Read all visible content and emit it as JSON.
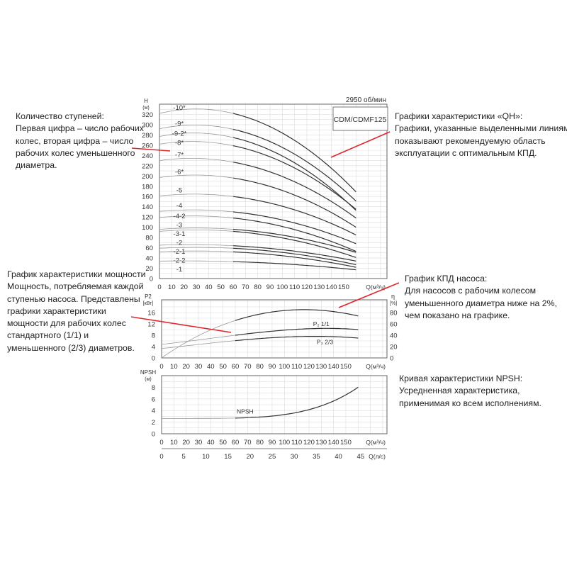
{
  "header": {
    "speed": "2950 об/мин",
    "model": "CDM/CDMF125"
  },
  "annotations": {
    "stages": [
      "Количество ступеней:",
      "Первая цифра – число рабочих",
      "колес, вторая цифра – число",
      "рабочих колес уменьшенного",
      "диаметра."
    ],
    "qh": [
      "Графики характеристики «QH»:",
      "Графики, указанные выделенными линиями,",
      "показывают рекомендуемую область",
      "эксплуатации с оптимальным КПД."
    ],
    "power": [
      "График характеристики мощности",
      "Мощность, потребляемая каждой",
      "ступенью насоса. Представлены",
      "графики характеристики",
      "мощности для рабочих колес",
      "стандартного (1/1) и",
      "уменьшенного (2/3) диаметров."
    ],
    "efficiency": [
      "График КПД насоса:",
      "Для насосов с рабочим колесом",
      "уменьшенного диаметра ниже на 2%,",
      "чем показано на графике."
    ],
    "npsh": [
      "Кривая характеристики NPSH:",
      "Усредненная характеристика,",
      "применимая ко всем исполнениям."
    ]
  },
  "accent_color": "#e0262b",
  "chart_data": [
    {
      "type": "line",
      "ylabel": "H",
      "yunit": "(м)",
      "xlabel": "Q(м³/ч)",
      "xlim": [
        0,
        180
      ],
      "ylim": [
        0,
        340
      ],
      "grid": true,
      "xticks": [
        0,
        10,
        20,
        30,
        40,
        50,
        60,
        70,
        80,
        90,
        100,
        110,
        120,
        130,
        140,
        150
      ],
      "yticks": [
        0,
        20,
        40,
        60,
        80,
        100,
        120,
        140,
        160,
        180,
        200,
        220,
        240,
        260,
        280,
        300,
        320
      ],
      "x": [
        0,
        60,
        160
      ],
      "recommended_range": [
        60,
        160
      ],
      "series": [
        {
          "name": "-10*",
          "values": [
            322,
            322,
            169
          ]
        },
        {
          "name": "-9*",
          "values": [
            292,
            291,
            151
          ]
        },
        {
          "name": "-9-2*",
          "values": [
            277,
            275,
            133
          ]
        },
        {
          "name": "-8*",
          "values": [
            262,
            259,
            135
          ]
        },
        {
          "name": "-7*",
          "values": [
            230,
            227,
            118
          ]
        },
        {
          "name": "-6*",
          "values": [
            197,
            196,
            100
          ]
        },
        {
          "name": "-5",
          "values": [
            161,
            160,
            85
          ]
        },
        {
          "name": "-4",
          "values": [
            131,
            130,
            68
          ]
        },
        {
          "name": "-4-2",
          "values": [
            119,
            118,
            53
          ]
        },
        {
          "name": "-3",
          "values": [
            96,
            96,
            51
          ]
        },
        {
          "name": "-3-1",
          "values": [
            92,
            92,
            41
          ]
        },
        {
          "name": "-2",
          "values": [
            65,
            64,
            34
          ]
        },
        {
          "name": "-2-1",
          "values": [
            59,
            59,
            27
          ]
        },
        {
          "name": "-2-2",
          "values": [
            52,
            52,
            22
          ]
        },
        {
          "name": "-1",
          "values": [
            34,
            33,
            17
          ]
        }
      ]
    },
    {
      "type": "line",
      "ylabel": "P2",
      "yunit": "[кВт]",
      "y2label": "η",
      "y2unit": "[%]",
      "xlabel": "Q(м³/ч)",
      "xlim": [
        0,
        180
      ],
      "ylim": [
        0,
        20.5
      ],
      "y2lim": [
        0,
        102.5
      ],
      "grid": true,
      "xticks": [
        0,
        10,
        20,
        30,
        40,
        50,
        60,
        70,
        80,
        90,
        100,
        110,
        120,
        130,
        140,
        150
      ],
      "yticks": [
        0,
        4,
        8,
        12,
        16
      ],
      "y2ticks": [
        0,
        20,
        40,
        60,
        80
      ],
      "x": [
        0,
        60,
        120,
        160
      ],
      "recommended_range": [
        60,
        160
      ],
      "series": [
        {
          "name": "η",
          "axis": "right",
          "values": [
            0,
            66,
            85,
            74
          ]
        },
        {
          "name": "P₂ 1/1",
          "axis": "left",
          "values": [
            4.8,
            8.0,
            10.3,
            10.0
          ]
        },
        {
          "name": "P₂ 2/3",
          "axis": "left",
          "values": [
            3.3,
            6.1,
            7.6,
            7.0
          ]
        }
      ]
    },
    {
      "type": "line",
      "ylabel": "NPSH",
      "yunit": "(м)",
      "xlabel": "Q(м³/ч)",
      "x2label": "Q(л/с)",
      "xlim": [
        0,
        180
      ],
      "ylim": [
        0,
        10
      ],
      "grid": true,
      "xticks": [
        0,
        10,
        20,
        30,
        40,
        50,
        60,
        70,
        80,
        90,
        100,
        110,
        120,
        130,
        140,
        150
      ],
      "x2ticks": [
        0,
        5,
        10,
        15,
        20,
        25,
        30,
        35,
        40,
        45
      ],
      "yticks": [
        0,
        2,
        4,
        6,
        8
      ],
      "x": [
        0,
        60,
        100,
        130,
        160
      ],
      "recommended_range": [
        60,
        160
      ],
      "series": [
        {
          "name": "NPSH",
          "values": [
            2.6,
            2.7,
            3.3,
            4.8,
            8.0
          ]
        }
      ]
    }
  ]
}
